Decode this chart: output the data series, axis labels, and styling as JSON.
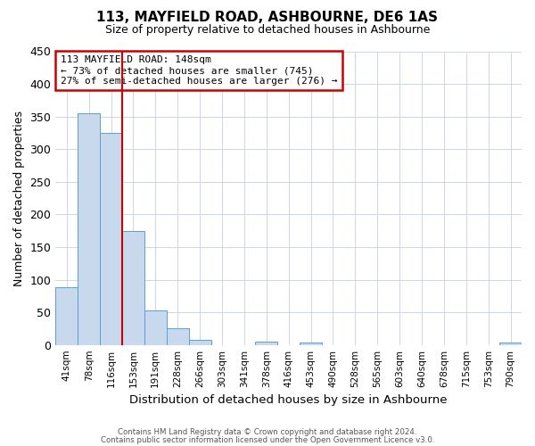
{
  "title": "113, MAYFIELD ROAD, ASHBOURNE, DE6 1AS",
  "subtitle": "Size of property relative to detached houses in Ashbourne",
  "xlabel": "Distribution of detached houses by size in Ashbourne",
  "ylabel": "Number of detached properties",
  "bar_labels": [
    "41sqm",
    "78sqm",
    "116sqm",
    "153sqm",
    "191sqm",
    "228sqm",
    "266sqm",
    "303sqm",
    "341sqm",
    "378sqm",
    "416sqm",
    "453sqm",
    "490sqm",
    "528sqm",
    "565sqm",
    "603sqm",
    "640sqm",
    "678sqm",
    "715sqm",
    "753sqm",
    "790sqm"
  ],
  "bar_values": [
    88,
    355,
    325,
    175,
    53,
    26,
    8,
    0,
    0,
    5,
    0,
    4,
    0,
    0,
    0,
    0,
    0,
    0,
    0,
    0,
    4
  ],
  "bar_color": "#c8d9ee",
  "bar_edge_color": "#5a9fd4",
  "ylim": [
    0,
    450
  ],
  "yticks": [
    0,
    50,
    100,
    150,
    200,
    250,
    300,
    350,
    400,
    450
  ],
  "red_line_x": 2.5,
  "marker_color": "#cc0000",
  "annotation_title": "113 MAYFIELD ROAD: 148sqm",
  "annotation_line1": "← 73% of detached houses are smaller (745)",
  "annotation_line2": "27% of semi-detached houses are larger (276) →",
  "annotation_box_color": "#cc0000",
  "footer_line1": "Contains HM Land Registry data © Crown copyright and database right 2024.",
  "footer_line2": "Contains public sector information licensed under the Open Government Licence v3.0.",
  "background_color": "#ffffff",
  "grid_color": "#ccd6e8"
}
